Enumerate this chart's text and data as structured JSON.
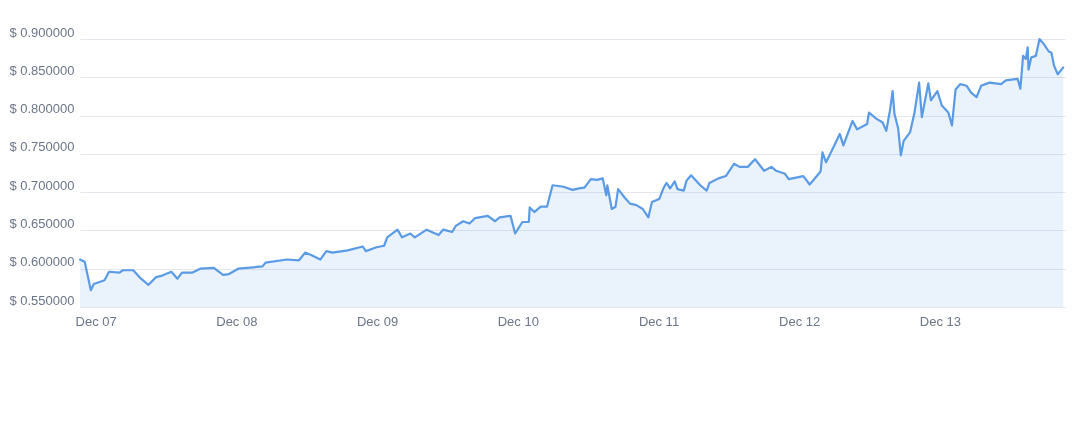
{
  "chart_data": {
    "type": "area",
    "x": [
      "--12-06T21:20",
      "--12-06T22:08",
      "--12-06T23:11",
      "--12-06T23:41",
      "--12-07T01:31",
      "--12-07T02:17",
      "--12-07T04:05",
      "--12-07T04:37",
      "--12-07T06:25",
      "--12-07T07:44",
      "--12-07T09:01",
      "--12-07T10:19",
      "--12-07T11:21",
      "--12-07T12:55",
      "--12-07T13:57",
      "--12-07T14:44",
      "--12-07T16:32",
      "--12-07T17:50",
      "--12-07T20:10",
      "--12-07T21:44",
      "--12-07T22:45",
      "--12-08T00:19",
      "--12-08T04:28",
      "--12-08T04:59",
      "--12-08T08:37",
      "--12-08T10:41",
      "--12-08T11:44",
      "--12-08T12:45",
      "--12-08T14:19",
      "--12-08T15:21",
      "--12-08T16:23",
      "--12-08T18:59",
      "--12-08T21:34",
      "--12-08T22:05",
      "--12-08T23:55",
      "--12-09T01:12",
      "--12-09T01:44",
      "--12-09T03:29",
      "--12-09T04:16",
      "--12-09T05:40",
      "--12-09T06:26",
      "--12-09T08:28",
      "--12-09T10:29",
      "--12-09T11:16",
      "--12-09T12:49",
      "--12-09T13:26",
      "--12-09T14:41",
      "--12-09T15:46",
      "--12-09T16:42",
      "--12-09T18:53",
      "--12-09T20:08",
      "--12-09T20:54",
      "--12-09T22:46",
      "--12-09T23:33",
      "--12-10T00:47",
      "--12-10T01:53",
      "--12-10T02:02",
      "--12-10T02:49",
      "--12-10T03:54",
      "--12-10T04:59",
      "--12-10T05:56",
      "--12-10T07:47",
      "--12-10T09:21",
      "--12-10T10:26",
      "--12-10T11:22",
      "--12-10T12:28",
      "--12-10T13:33",
      "--12-10T14:29",
      "--12-10T15:06",
      "--12-10T15:16",
      "--12-10T16:02",
      "--12-10T16:40",
      "--12-10T17:07",
      "--12-10T18:13",
      "--12-10T19:09",
      "--12-10T20:14",
      "--12-10T21:19",
      "--12-10T22:16",
      "--12-10T22:53",
      "--12-11T00:07",
      "--12-11T00:54",
      "--12-11T01:22",
      "--12-11T01:59",
      "--12-11T02:46",
      "--12-11T03:14",
      "--12-11T04:19",
      "--12-11T04:47",
      "--12-11T05:34",
      "--12-11T07:07",
      "--12-11T08:13",
      "--12-11T08:41",
      "--12-11T10:14",
      "--12-11T11:29",
      "--12-11T12:53",
      "--12-11T13:49",
      "--12-11T15:13",
      "--12-11T16:28",
      "--12-11T18:01",
      "--12-11T19:16",
      "--12-11T20:02",
      "--12-11T21:35",
      "--12-11T22:13",
      "--12-12T00:42",
      "--12-12T01:47",
      "--12-12T03:39",
      "--12-12T03:58",
      "--12-12T04:35",
      "--12-12T05:59",
      "--12-12T06:55",
      "--12-12T07:32",
      "--12-12T09:06",
      "--12-12T09:53",
      "--12-12T11:35",
      "--12-12T11:54",
      "--12-12T13:08",
      "--12-12T14:14",
      "--12-12T14:51",
      "--12-12T15:29",
      "--12-12T15:56",
      "--12-12T16:15",
      "--12-12T16:53",
      "--12-12T17:20",
      "--12-12T17:49",
      "--12-12T18:54",
      "--12-12T19:40",
      "--12-12T20:27",
      "--12-12T20:55",
      "--12-12T22:01",
      "--12-12T22:28",
      "--12-12T23:34",
      "--12-13T00:20",
      "--12-13T01:26",
      "--12-13T02:03",
      "--12-13T02:40",
      "--12-13T03:27",
      "--12-13T04:32",
      "--12-13T05:19",
      "--12-13T06:15",
      "--12-13T07:02",
      "--12-13T08:26",
      "--12-13T10:27",
      "--12-13T11:14",
      "--12-13T13:15",
      "--12-13T13:43",
      "--12-13T14:11",
      "--12-13T14:39",
      "--12-13T14:58",
      "--12-13T15:07",
      "--12-13T15:35",
      "--12-13T16:22",
      "--12-13T16:59",
      "--12-13T17:46",
      "--12-13T18:32",
      "--12-13T19:01",
      "--12-13T19:28",
      "--12-13T20:06",
      "--12-13T21:02"
    ],
    "series": [
      {
        "color": "#5b9be6",
        "values": [
          0.612,
          0.609,
          0.572,
          0.58,
          0.585,
          0.596,
          0.595,
          0.598,
          0.598,
          0.587,
          0.579,
          0.589,
          0.591,
          0.596,
          0.587,
          0.595,
          0.595,
          0.6,
          0.601,
          0.592,
          0.593,
          0.6,
          0.603,
          0.608,
          0.612,
          0.611,
          0.621,
          0.618,
          0.612,
          0.623,
          0.621,
          0.624,
          0.629,
          0.623,
          0.628,
          0.63,
          0.641,
          0.651,
          0.641,
          0.646,
          0.641,
          0.651,
          0.644,
          0.651,
          0.648,
          0.656,
          0.662,
          0.659,
          0.666,
          0.669,
          0.662,
          0.667,
          0.669,
          0.646,
          0.661,
          0.661,
          0.68,
          0.674,
          0.681,
          0.681,
          0.709,
          0.707,
          0.703,
          0.705,
          0.706,
          0.717,
          0.716,
          0.718,
          0.696,
          0.709,
          0.678,
          0.681,
          0.704,
          0.693,
          0.685,
          0.683,
          0.678,
          0.667,
          0.687,
          0.691,
          0.706,
          0.712,
          0.705,
          0.714,
          0.704,
          0.702,
          0.715,
          0.722,
          0.709,
          0.702,
          0.712,
          0.718,
          0.721,
          0.737,
          0.733,
          0.733,
          0.743,
          0.728,
          0.733,
          0.728,
          0.724,
          0.717,
          0.721,
          0.71,
          0.727,
          0.752,
          0.739,
          0.761,
          0.776,
          0.761,
          0.793,
          0.782,
          0.789,
          0.804,
          0.796,
          0.791,
          0.78,
          0.807,
          0.832,
          0.802,
          0.783,
          0.748,
          0.767,
          0.778,
          0.804,
          0.843,
          0.798,
          0.842,
          0.82,
          0.832,
          0.813,
          0.804,
          0.787,
          0.834,
          0.841,
          0.839,
          0.83,
          0.824,
          0.839,
          0.843,
          0.841,
          0.846,
          0.848,
          0.835,
          0.878,
          0.874,
          0.889,
          0.86,
          0.876,
          0.878,
          0.9,
          0.893,
          0.884,
          0.882,
          0.865,
          0.854,
          0.863
        ]
      }
    ],
    "xlim": [
      "--12-06T21:20",
      "--12-13T21:20"
    ],
    "xticks": [
      {
        "value": "--12-07",
        "label": "Dec 07"
      },
      {
        "value": "--12-08",
        "label": "Dec 08"
      },
      {
        "value": "--12-09",
        "label": "Dec 09"
      },
      {
        "value": "--12-10",
        "label": "Dec 10"
      },
      {
        "value": "--12-11",
        "label": "Dec 11"
      },
      {
        "value": "--12-12",
        "label": "Dec 12"
      },
      {
        "value": "--12-13",
        "label": "Dec 13"
      }
    ],
    "ylim": [
      0.55,
      0.9
    ],
    "yticks": [
      {
        "value": 0.55,
        "label": "$ 0.550000"
      },
      {
        "value": 0.6,
        "label": "$ 0.600000"
      },
      {
        "value": 0.65,
        "label": "$ 0.650000"
      },
      {
        "value": 0.7,
        "label": "$ 0.700000"
      },
      {
        "value": 0.75,
        "label": "$ 0.750000"
      },
      {
        "value": 0.8,
        "label": "$ 0.800000"
      },
      {
        "value": 0.85,
        "label": "$ 0.850000"
      },
      {
        "value": 0.9,
        "label": "$ 0.900000"
      }
    ],
    "grid": "y"
  }
}
